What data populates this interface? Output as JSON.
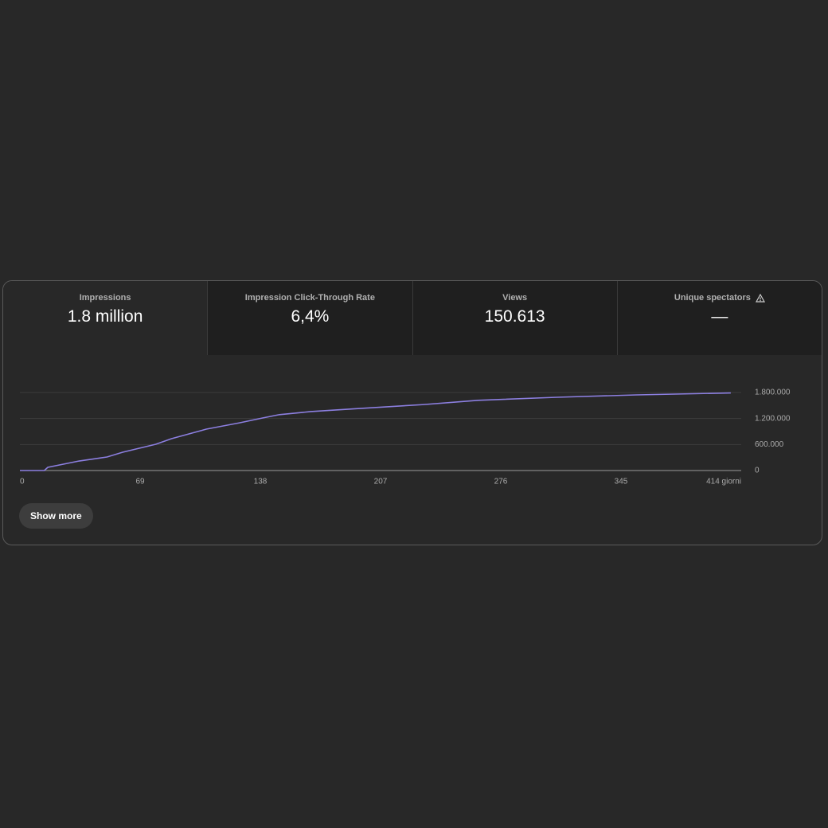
{
  "metrics": [
    {
      "label": "Impressions",
      "value": "1.8 million"
    },
    {
      "label": "Impression Click-Through Rate",
      "value": "6,4%"
    },
    {
      "label": "Views",
      "value": "150.613"
    },
    {
      "label": "Unique spectators",
      "value": "—"
    }
  ],
  "chart_data": {
    "type": "line",
    "x": [
      0,
      14,
      16,
      34,
      50,
      59,
      78,
      87,
      107,
      126,
      139,
      149,
      167,
      194,
      231,
      263,
      308,
      354,
      408
    ],
    "values": [
      0,
      0,
      73000,
      220000,
      312000,
      422000,
      606000,
      735000,
      955000,
      1100000,
      1210000,
      1290000,
      1360000,
      1430000,
      1520000,
      1620000,
      1690000,
      1745000,
      1790000
    ],
    "color": "#8c7fe0",
    "xlim": [
      0,
      414
    ],
    "xticks": [
      0,
      69,
      138,
      207,
      276,
      345,
      {
        "value": 414,
        "label": "414 giorni"
      }
    ],
    "ylim": [
      0,
      1800000
    ],
    "yticks": [
      0,
      {
        "value": 600000,
        "label": "600.000"
      },
      {
        "value": 1200000,
        "label": "1.200.000"
      },
      {
        "value": 1800000,
        "label": "1.800.000"
      }
    ],
    "grid": true
  },
  "button": "Show more"
}
